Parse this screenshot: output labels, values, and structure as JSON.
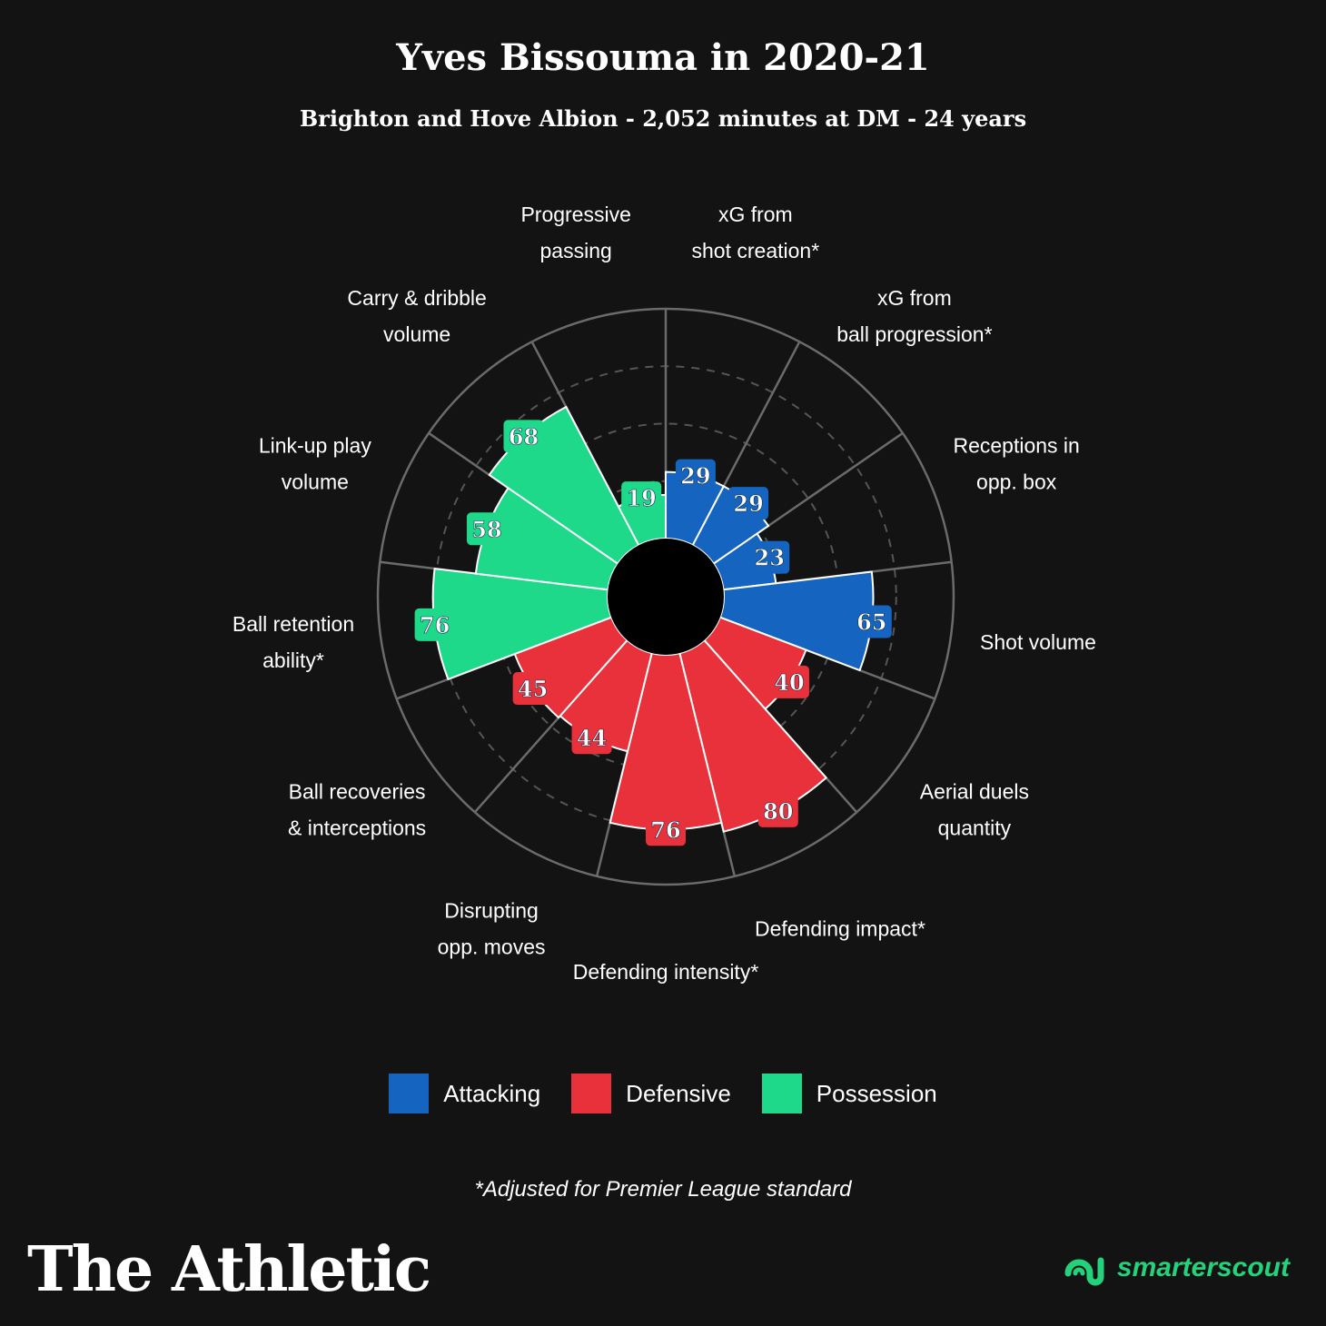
{
  "title": "Yves Bissouma in 2020-21",
  "subtitle": "Brighton and Hove Albion - 2,052 minutes at DM - 24 years",
  "footnote": "*Adjusted for Premier League standard",
  "brand": "The Athletic",
  "scout": "smarterscout",
  "colors": {
    "Attacking": "#1565c0",
    "Defensive": "#e8313a",
    "Possession": "#1ed98a",
    "background": "#131313"
  },
  "chart_data": {
    "type": "polar-area",
    "rlim": [
      0,
      100
    ],
    "categories": [
      {
        "label": [
          "xG from",
          "shot creation*"
        ],
        "value": 29,
        "group": "Attacking"
      },
      {
        "label": [
          "xG from",
          "ball progression*"
        ],
        "value": 29,
        "group": "Attacking"
      },
      {
        "label": [
          "Receptions in",
          "opp. box"
        ],
        "value": 23,
        "group": "Attacking"
      },
      {
        "label": [
          "Shot volume"
        ],
        "value": 65,
        "group": "Attacking"
      },
      {
        "label": [
          "Aerial duels",
          "quantity"
        ],
        "value": 40,
        "group": "Defensive"
      },
      {
        "label": [
          "Defending impact*"
        ],
        "value": 80,
        "group": "Defensive"
      },
      {
        "label": [
          "Defending intensity*"
        ],
        "value": 76,
        "group": "Defensive"
      },
      {
        "label": [
          "Disrupting",
          "opp. moves"
        ],
        "value": 44,
        "group": "Defensive"
      },
      {
        "label": [
          "Ball recoveries",
          "& interceptions"
        ],
        "value": 45,
        "group": "Defensive"
      },
      {
        "label": [
          "Ball retention",
          "ability*"
        ],
        "value": 76,
        "group": "Possession"
      },
      {
        "label": [
          "Link-up play",
          "volume"
        ],
        "value": 58,
        "group": "Possession"
      },
      {
        "label": [
          "Carry & dribble",
          "volume"
        ],
        "value": 68,
        "group": "Possession"
      },
      {
        "label": [
          "Progressive",
          "passing"
        ],
        "value": 19,
        "group": "Possession"
      }
    ],
    "legend": [
      "Attacking",
      "Defensive",
      "Possession"
    ],
    "legend_position": "bottom"
  }
}
